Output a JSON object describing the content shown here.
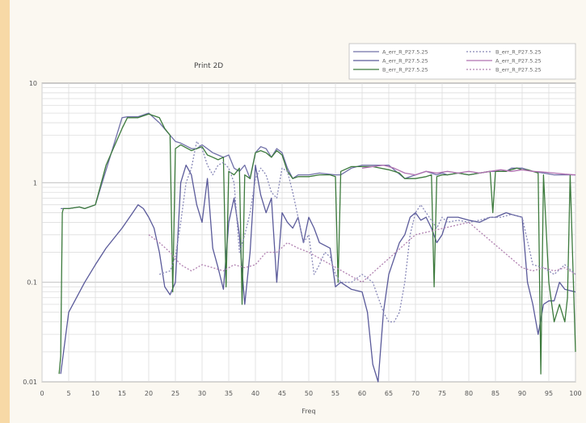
{
  "chart_data": {
    "type": "line",
    "title": "Print 2D",
    "xlabel": "Freq",
    "ylabel": "",
    "xlim": [
      0,
      100
    ],
    "ylim": [
      0.01,
      10
    ],
    "yscale": "log",
    "grid": true,
    "legend_position": "top-right",
    "x_ticks": [
      "0",
      "5",
      "10",
      "15",
      "20",
      "25",
      "30",
      "35",
      "40",
      "45",
      "50",
      "55",
      "60",
      "65",
      "70",
      "75",
      "80",
      "85",
      "90",
      "95",
      "100"
    ],
    "y_ticks": [
      {
        "value": 10,
        "label": "10"
      },
      {
        "value": 1,
        "label": "1"
      },
      {
        "value": 0.1,
        "label": "0.1"
      },
      {
        "value": 0.01,
        "label": "0.01"
      }
    ],
    "series": [
      {
        "name": "A_err_R_P27.5.25",
        "color": "#7070a8",
        "dash": "",
        "x": [
          3.5,
          5,
          7,
          8,
          10,
          13,
          15,
          16,
          18,
          20,
          22,
          24,
          25,
          26,
          28,
          29,
          30,
          32,
          33,
          34,
          35,
          36,
          37,
          38,
          39,
          40,
          41,
          42,
          43,
          44,
          45,
          46,
          47,
          48,
          49,
          50,
          52,
          55,
          56,
          58,
          60,
          62,
          65,
          66,
          68,
          70,
          72,
          74,
          75,
          76,
          78,
          80,
          82,
          84,
          85,
          87,
          88,
          90,
          92,
          94,
          96,
          98,
          100
        ],
        "y": [
          0.55,
          0.55,
          0.57,
          0.55,
          0.6,
          2.0,
          4.5,
          4.6,
          4.6,
          5.0,
          4.0,
          3.0,
          2.6,
          2.5,
          2.2,
          2.2,
          2.4,
          2.0,
          1.9,
          1.8,
          1.9,
          1.4,
          1.3,
          1.5,
          1.1,
          2.0,
          2.3,
          2.2,
          1.8,
          2.2,
          2.0,
          1.4,
          1.1,
          1.2,
          1.2,
          1.2,
          1.25,
          1.2,
          1.2,
          1.4,
          1.5,
          1.5,
          1.5,
          1.35,
          1.1,
          1.2,
          1.3,
          1.2,
          1.25,
          1.2,
          1.25,
          1.2,
          1.25,
          1.3,
          1.3,
          1.3,
          1.4,
          1.4,
          1.3,
          1.25,
          1.2,
          1.2,
          1.2
        ]
      },
      {
        "name": "A_err_R_P27.5.25",
        "color": "#5a5a9a",
        "dash": "",
        "x": [
          3.5,
          5,
          8,
          10,
          12,
          15,
          17,
          18,
          19,
          20,
          21,
          22,
          23,
          24,
          25,
          26,
          27,
          28,
          29,
          30,
          31,
          32,
          33,
          34,
          35,
          36,
          37,
          38,
          39,
          40,
          41,
          42,
          43,
          44,
          45,
          46,
          47,
          48,
          49,
          50,
          51,
          52,
          54,
          55,
          56,
          58,
          60,
          61,
          62,
          63,
          64,
          65,
          67,
          68,
          69,
          70,
          71,
          72,
          73,
          74,
          75,
          76,
          78,
          80,
          82,
          84,
          85,
          87,
          88,
          90,
          91,
          92,
          93,
          94,
          95,
          96,
          97,
          98,
          100
        ],
        "y": [
          0.012,
          0.05,
          0.1,
          0.15,
          0.22,
          0.35,
          0.5,
          0.6,
          0.55,
          0.45,
          0.35,
          0.2,
          0.09,
          0.075,
          0.1,
          1.0,
          1.5,
          1.2,
          0.6,
          0.4,
          1.1,
          0.22,
          0.14,
          0.085,
          0.4,
          0.7,
          0.3,
          0.06,
          0.2,
          1.5,
          0.75,
          0.5,
          0.7,
          0.1,
          0.5,
          0.4,
          0.35,
          0.45,
          0.25,
          0.45,
          0.35,
          0.25,
          0.22,
          0.09,
          0.1,
          0.085,
          0.08,
          0.05,
          0.015,
          0.01,
          0.05,
          0.12,
          0.25,
          0.3,
          0.45,
          0.5,
          0.42,
          0.45,
          0.35,
          0.25,
          0.3,
          0.45,
          0.45,
          0.42,
          0.4,
          0.45,
          0.45,
          0.5,
          0.48,
          0.45,
          0.1,
          0.06,
          0.03,
          0.06,
          0.065,
          0.065,
          0.1,
          0.085,
          0.08
        ]
      },
      {
        "name": "B_err_R_P27.5.25",
        "color": "#3c7a3c",
        "dash": "",
        "x": [
          3.2,
          3.5,
          3.8,
          4,
          5,
          6,
          7,
          8,
          10,
          12,
          15,
          16,
          17,
          18,
          20,
          22,
          23,
          24,
          24.5,
          25,
          26,
          28,
          29,
          30,
          31,
          32,
          33,
          34,
          34.5,
          35,
          36,
          37,
          37.5,
          38,
          39,
          40,
          41,
          42,
          43,
          44,
          45,
          46,
          47,
          48,
          49,
          50,
          52,
          54,
          55,
          55.5,
          56,
          58,
          60,
          62,
          65,
          66,
          67,
          68,
          70,
          72,
          73,
          73.5,
          74,
          75,
          76,
          78,
          80,
          82,
          84,
          84.5,
          85,
          87,
          88,
          89,
          90,
          91,
          92,
          93,
          93.5,
          94,
          95,
          96,
          97,
          98,
          98.5,
          99,
          100
        ],
        "y": [
          0.012,
          0.018,
          0.5,
          0.55,
          0.55,
          0.56,
          0.57,
          0.55,
          0.6,
          1.5,
          3.5,
          4.5,
          4.5,
          4.5,
          4.9,
          4.5,
          3.5,
          3.0,
          0.08,
          2.2,
          2.4,
          2.1,
          2.2,
          2.3,
          1.9,
          1.8,
          1.7,
          1.8,
          0.09,
          1.3,
          1.2,
          1.4,
          0.06,
          1.2,
          1.1,
          2.0,
          2.1,
          2.0,
          1.8,
          2.1,
          1.9,
          1.3,
          1.1,
          1.15,
          1.15,
          1.15,
          1.2,
          1.2,
          1.15,
          0.1,
          1.3,
          1.45,
          1.45,
          1.45,
          1.35,
          1.3,
          1.25,
          1.1,
          1.1,
          1.15,
          1.2,
          0.09,
          1.15,
          1.2,
          1.2,
          1.25,
          1.2,
          1.25,
          1.3,
          0.5,
          1.3,
          1.3,
          1.35,
          1.4,
          1.35,
          1.35,
          1.3,
          1.25,
          0.012,
          1.2,
          0.1,
          0.04,
          0.06,
          0.04,
          0.07,
          1.2,
          0.02
        ]
      },
      {
        "name": "B_err_R_P27.5.25",
        "color": "#8888b8",
        "dash": "2,2",
        "x": [
          22,
          24,
          25,
          26,
          27,
          28,
          29,
          30,
          31,
          32,
          33,
          34,
          35,
          36,
          37,
          38,
          39,
          40,
          41,
          42,
          43,
          44,
          45,
          46,
          47,
          48,
          49,
          50,
          51,
          52,
          53,
          54,
          55,
          56,
          58,
          60,
          62,
          64,
          65,
          66,
          67,
          68,
          69,
          70,
          71,
          72,
          74,
          75,
          76,
          78,
          80,
          82,
          84,
          86,
          88,
          90,
          92,
          94,
          96,
          98,
          100
        ],
        "y": [
          0.12,
          0.13,
          0.18,
          0.4,
          1.0,
          1.4,
          2.6,
          2.2,
          1.5,
          1.2,
          1.5,
          1.6,
          1.4,
          1.0,
          0.2,
          0.3,
          0.5,
          1.1,
          1.4,
          1.2,
          0.8,
          0.7,
          1.4,
          1.3,
          0.8,
          0.45,
          0.25,
          0.3,
          0.12,
          0.15,
          0.2,
          0.18,
          0.12,
          0.1,
          0.1,
          0.12,
          0.1,
          0.05,
          0.04,
          0.04,
          0.05,
          0.1,
          0.3,
          0.5,
          0.6,
          0.5,
          0.35,
          0.45,
          0.4,
          0.42,
          0.4,
          0.42,
          0.45,
          0.45,
          0.48,
          0.45,
          0.15,
          0.14,
          0.12,
          0.15,
          0.12
        ]
      },
      {
        "name": "A_err_R_P27.5.25",
        "color": "#b070b0",
        "dash": "",
        "x": [
          60,
          62,
          64,
          66,
          68,
          70,
          72,
          74,
          76,
          78,
          80,
          82,
          84,
          86,
          88,
          90,
          92,
          94,
          96,
          98,
          100
        ],
        "y": [
          1.4,
          1.45,
          1.5,
          1.4,
          1.25,
          1.2,
          1.3,
          1.25,
          1.3,
          1.25,
          1.3,
          1.25,
          1.3,
          1.35,
          1.3,
          1.35,
          1.3,
          1.28,
          1.25,
          1.22,
          1.2
        ]
      },
      {
        "name": "B_err_R_P27.5.25",
        "color": "#b080b0",
        "dash": "2,2",
        "x": [
          20,
          22,
          24,
          26,
          28,
          30,
          32,
          34,
          36,
          38,
          40,
          42,
          44,
          46,
          48,
          50,
          60,
          70,
          80,
          90,
          92,
          94,
          96,
          98,
          100
        ],
        "y": [
          0.3,
          0.25,
          0.2,
          0.15,
          0.13,
          0.15,
          0.14,
          0.13,
          0.15,
          0.14,
          0.15,
          0.2,
          0.2,
          0.25,
          0.22,
          0.2,
          0.1,
          0.3,
          0.4,
          0.14,
          0.13,
          0.14,
          0.13,
          0.14,
          0.12
        ]
      }
    ]
  }
}
